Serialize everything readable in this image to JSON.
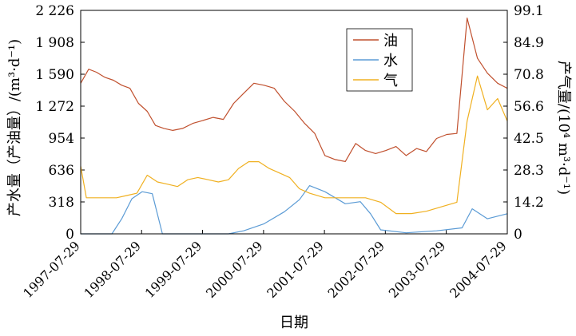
{
  "chart_data": {
    "type": "line",
    "xlabel": "日期",
    "ylabel_left": "产水量（产油量）/(m³·d⁻¹)",
    "ylabel_right": "产气量/(10⁴ m³·d⁻¹)",
    "x_range": [
      "1997-07-29",
      "2004-07-29"
    ],
    "x_ticks": [
      "1997-07-29",
      "1998-07-29",
      "1999-07-29",
      "2000-07-29",
      "2001-07-29",
      "2002-07-29",
      "2003-07-29",
      "2004-07-29"
    ],
    "ylim_left": [
      0,
      2226
    ],
    "y_ticks_left": [
      "0",
      "318",
      "636",
      "954",
      "1 272",
      "1 590",
      "1 908",
      "2 226"
    ],
    "ylim_right": [
      0,
      99.1
    ],
    "y_ticks_right": [
      "0",
      "14.2",
      "28.3",
      "42.5",
      "56.6",
      "70.8",
      "84.9",
      "99.1"
    ],
    "legend_position": "top-right",
    "series": [
      {
        "name": "油",
        "axis": "left",
        "color": "#c0502e",
        "points": [
          [
            "1997-07-29",
            1500
          ],
          [
            "1997-09-15",
            1640
          ],
          [
            "1997-11-01",
            1610
          ],
          [
            "1997-12-20",
            1560
          ],
          [
            "1998-02-10",
            1530
          ],
          [
            "1998-04-01",
            1480
          ],
          [
            "1998-05-20",
            1450
          ],
          [
            "1998-07-10",
            1300
          ],
          [
            "1998-09-01",
            1220
          ],
          [
            "1998-10-20",
            1080
          ],
          [
            "1998-12-10",
            1050
          ],
          [
            "1999-02-01",
            1030
          ],
          [
            "1999-04-01",
            1050
          ],
          [
            "1999-06-01",
            1100
          ],
          [
            "1999-08-01",
            1130
          ],
          [
            "1999-10-01",
            1160
          ],
          [
            "1999-12-01",
            1140
          ],
          [
            "2000-02-01",
            1300
          ],
          [
            "2000-04-01",
            1400
          ],
          [
            "2000-06-01",
            1500
          ],
          [
            "2000-08-01",
            1480
          ],
          [
            "2000-10-01",
            1450
          ],
          [
            "2000-12-01",
            1320
          ],
          [
            "2001-02-01",
            1220
          ],
          [
            "2001-04-01",
            1100
          ],
          [
            "2001-06-01",
            1000
          ],
          [
            "2001-08-01",
            780
          ],
          [
            "2001-10-01",
            740
          ],
          [
            "2001-12-01",
            720
          ],
          [
            "2002-02-01",
            900
          ],
          [
            "2002-04-01",
            830
          ],
          [
            "2002-06-01",
            800
          ],
          [
            "2002-08-01",
            830
          ],
          [
            "2002-10-01",
            870
          ],
          [
            "2002-12-01",
            780
          ],
          [
            "2003-02-01",
            850
          ],
          [
            "2003-04-01",
            820
          ],
          [
            "2003-06-01",
            950
          ],
          [
            "2003-08-01",
            990
          ],
          [
            "2003-10-01",
            1000
          ],
          [
            "2003-12-01",
            2150
          ],
          [
            "2004-02-01",
            1750
          ],
          [
            "2004-04-01",
            1600
          ],
          [
            "2004-06-01",
            1500
          ],
          [
            "2004-07-29",
            1450
          ]
        ]
      },
      {
        "name": "水",
        "axis": "left",
        "color": "#5b9bd5",
        "points": [
          [
            "1997-07-29",
            0
          ],
          [
            "1998-02-01",
            0
          ],
          [
            "1998-04-01",
            150
          ],
          [
            "1998-06-01",
            350
          ],
          [
            "1998-08-01",
            420
          ],
          [
            "1998-10-01",
            400
          ],
          [
            "1998-12-01",
            0
          ],
          [
            "1999-06-01",
            0
          ],
          [
            "2000-01-01",
            0
          ],
          [
            "2000-04-01",
            30
          ],
          [
            "2000-08-01",
            100
          ],
          [
            "2000-12-01",
            220
          ],
          [
            "2001-03-01",
            340
          ],
          [
            "2001-05-01",
            480
          ],
          [
            "2001-08-01",
            420
          ],
          [
            "2001-12-01",
            300
          ],
          [
            "2002-03-01",
            320
          ],
          [
            "2002-05-01",
            200
          ],
          [
            "2002-07-01",
            40
          ],
          [
            "2002-12-01",
            10
          ],
          [
            "2003-06-01",
            30
          ],
          [
            "2003-11-01",
            60
          ],
          [
            "2004-01-01",
            250
          ],
          [
            "2004-04-01",
            150
          ],
          [
            "2004-07-29",
            200
          ]
        ]
      },
      {
        "name": "气",
        "axis": "right",
        "color": "#f0b020",
        "points": [
          [
            "1997-07-29",
            30
          ],
          [
            "1997-09-01",
            16
          ],
          [
            "1997-11-01",
            16
          ],
          [
            "1998-01-01",
            16
          ],
          [
            "1998-03-01",
            16
          ],
          [
            "1998-05-01",
            17
          ],
          [
            "1998-07-01",
            18
          ],
          [
            "1998-09-01",
            26
          ],
          [
            "1998-11-01",
            23
          ],
          [
            "1999-01-01",
            22
          ],
          [
            "1999-03-01",
            21
          ],
          [
            "1999-05-01",
            24
          ],
          [
            "1999-07-01",
            25
          ],
          [
            "1999-09-01",
            24
          ],
          [
            "1999-11-01",
            23
          ],
          [
            "2000-01-01",
            24
          ],
          [
            "2000-03-01",
            29
          ],
          [
            "2000-05-01",
            32
          ],
          [
            "2000-07-01",
            32
          ],
          [
            "2000-09-01",
            29
          ],
          [
            "2000-11-01",
            27
          ],
          [
            "2001-01-01",
            25
          ],
          [
            "2001-03-01",
            20
          ],
          [
            "2001-05-01",
            18
          ],
          [
            "2001-08-01",
            16
          ],
          [
            "2001-11-01",
            16
          ],
          [
            "2002-01-01",
            16
          ],
          [
            "2002-04-01",
            16
          ],
          [
            "2002-07-01",
            14
          ],
          [
            "2002-10-01",
            9
          ],
          [
            "2003-01-01",
            9
          ],
          [
            "2003-04-01",
            10
          ],
          [
            "2003-07-01",
            12
          ],
          [
            "2003-10-01",
            14
          ],
          [
            "2003-12-01",
            50
          ],
          [
            "2004-02-01",
            70
          ],
          [
            "2004-04-01",
            55
          ],
          [
            "2004-06-01",
            60
          ],
          [
            "2004-07-29",
            50
          ]
        ]
      }
    ]
  }
}
